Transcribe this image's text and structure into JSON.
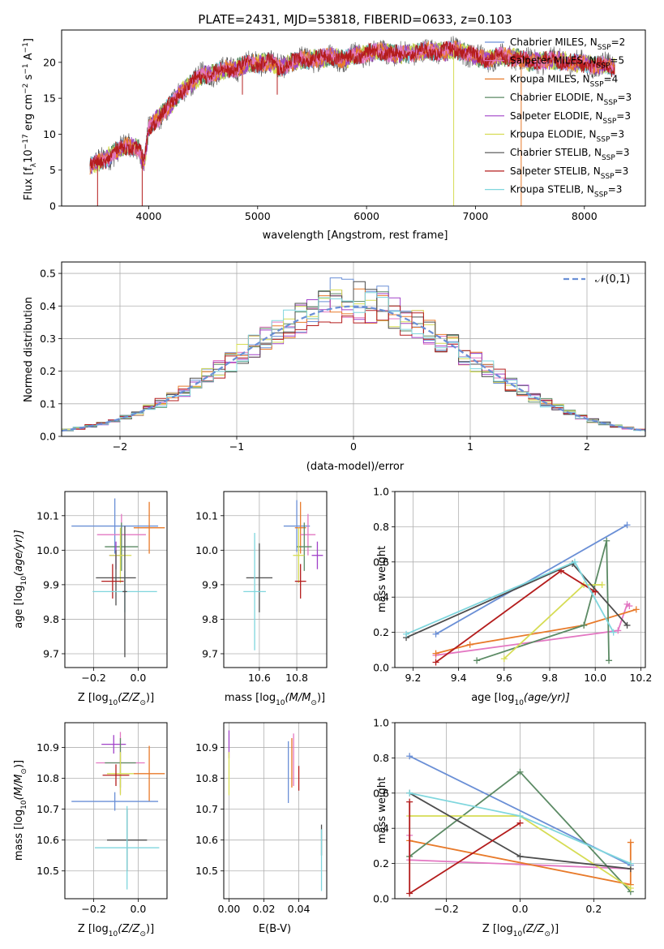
{
  "chart_data": [
    {
      "id": "spectrum",
      "type": "line",
      "title": "PLATE=2431, MJD=53818, FIBERID=0633, z=0.103",
      "xlabel": "wavelength [Angstrom, rest frame]",
      "ylabel_parts": [
        "Flux [f",
        "λ",
        "10",
        "−17",
        " erg cm",
        "−2",
        " s",
        "−1",
        " A",
        "−1",
        "]"
      ],
      "xlim": [
        3200,
        8560
      ],
      "ylim": [
        0,
        24.5
      ],
      "xticks": [
        4000,
        5000,
        6000,
        7000,
        8000
      ],
      "yticks": [
        0,
        5,
        10,
        15,
        20
      ],
      "grid": false,
      "legend_position": "top-right",
      "continuum": {
        "x": [
          3460,
          3600,
          3700,
          3800,
          3900,
          3960,
          4000,
          4100,
          4200,
          4300,
          4400,
          4500,
          4600,
          4700,
          4800,
          4900,
          5000,
          5100,
          5200,
          5300,
          5400,
          5500,
          5600,
          5700,
          5800,
          5900,
          6000,
          6100,
          6200,
          6300,
          6400,
          6500,
          6600,
          6700,
          6800,
          6900,
          7000,
          7100,
          7200,
          7300,
          7400,
          7500,
          7600,
          7700,
          7800,
          7900,
          8000,
          8100,
          8200,
          8280
        ],
        "y": [
          5.5,
          6.5,
          7.6,
          8.3,
          8.2,
          6.0,
          10.8,
          12.5,
          14.0,
          16.0,
          17.2,
          18.2,
          18.6,
          19.0,
          19.2,
          19.8,
          19.8,
          20.2,
          19.2,
          20.0,
          20.3,
          20.5,
          20.6,
          20.8,
          20.4,
          21.0,
          21.2,
          21.5,
          21.4,
          21.0,
          21.3,
          21.5,
          21.5,
          21.5,
          21.7,
          21.5,
          20.8,
          20.3,
          20.9,
          20.7,
          20.6,
          20.0,
          20.2,
          20.3,
          20.2,
          19.9,
          19.8,
          19.6,
          19.5,
          19.2
        ]
      },
      "spikes": [
        {
          "x": 3530,
          "y": 0
        },
        {
          "x": 3940,
          "y": 0
        },
        {
          "x": 6800,
          "y": 0
        },
        {
          "x": 7420,
          "y": 0
        },
        {
          "x": 6770,
          "y": 22.8
        },
        {
          "x": 4860,
          "y": 15.5
        },
        {
          "x": 5180,
          "y": 15.5
        }
      ],
      "series": [
        {
          "label": "Chabrier MILES, N",
          "sub": "SSP",
          "suffix": "=2",
          "color": "#6a8fd6"
        },
        {
          "label": "Salpeter MILES, N",
          "sub": "SSP",
          "suffix": "=5",
          "color": "#e377c2"
        },
        {
          "label": "Kroupa MILES, N",
          "sub": "SSP",
          "suffix": "=4",
          "color": "#e87a2a"
        },
        {
          "label": "Chabrier ELODIE, N",
          "sub": "SSP",
          "suffix": "=3",
          "color": "#5b8a64"
        },
        {
          "label": "Salpeter ELODIE, N",
          "sub": "SSP",
          "suffix": "=3",
          "color": "#a142c8"
        },
        {
          "label": "Kroupa ELODIE, N",
          "sub": "SSP",
          "suffix": "=3",
          "color": "#d6dc54"
        },
        {
          "label": "Chabrier STELIB, N",
          "sub": "SSP",
          "suffix": "=3",
          "color": "#4d4d4d"
        },
        {
          "label": "Salpeter STELIB, N",
          "sub": "SSP",
          "suffix": "=3",
          "color": "#b41c1c"
        },
        {
          "label": "Kroupa STELIB, N",
          "sub": "SSP",
          "suffix": "=3",
          "color": "#7fd6dd"
        }
      ]
    },
    {
      "id": "residuals",
      "type": "step-histogram",
      "xlabel": "(data-model)/error",
      "ylabel": "Normed distribution",
      "xlim": [
        -2.5,
        2.5
      ],
      "ylim": [
        0,
        0.535
      ],
      "xticks": [
        -2,
        -1,
        0,
        1,
        2
      ],
      "yticks": [
        0.0,
        0.1,
        0.2,
        0.3,
        0.4,
        0.5
      ],
      "grid": true,
      "legend": "𝒩(0,1)",
      "legend_position": "top-right",
      "bin_width": 0.1,
      "series_colors": [
        "#6a8fd6",
        "#e377c2",
        "#e87a2a",
        "#5b8a64",
        "#a142c8",
        "#d6dc54",
        "#4d4d4d",
        "#b41c1c",
        "#7fd6dd"
      ]
    },
    {
      "id": "age-Z",
      "type": "errorbar",
      "xlabel_parts": [
        "Z [log",
        "10",
        "(Z/Z",
        "⊙",
        ")]"
      ],
      "ylabel_parts": [
        "age  [log",
        "10",
        "(age/yr)]"
      ],
      "xlim": [
        -0.33,
        0.13
      ],
      "ylim": [
        9.66,
        10.17
      ],
      "xticks": [
        -0.2,
        0.0
      ],
      "yticks": [
        9.7,
        9.8,
        9.9,
        10.0,
        10.1
      ],
      "grid": true,
      "points": [
        {
          "x": -0.105,
          "y": 10.07,
          "xerr": 0.195,
          "yerr": 0.08,
          "color": "#6a8fd6"
        },
        {
          "x": 0.05,
          "y": 10.065,
          "xerr": 0.07,
          "yerr": 0.075,
          "color": "#e87a2a"
        },
        {
          "x": -0.075,
          "y": 10.045,
          "xerr": 0.11,
          "yerr": 0.06,
          "color": "#e377c2"
        },
        {
          "x": -0.075,
          "y": 10.01,
          "xerr": 0.075,
          "yerr": 0.07,
          "color": "#5b8a64"
        },
        {
          "x": -0.1,
          "y": 9.985,
          "xerr": 0.03,
          "yerr": 0.04,
          "color": "#a142c8"
        },
        {
          "x": -0.08,
          "y": 9.985,
          "xerr": 0.05,
          "yerr": 0.08,
          "color": "#d6dc54"
        },
        {
          "x": -0.1,
          "y": 9.92,
          "xerr": 0.09,
          "yerr": 0.08,
          "color": "#4d4d4d"
        },
        {
          "x": -0.115,
          "y": 9.91,
          "xerr": 0.05,
          "yerr": 0.05,
          "color": "#b41c1c"
        },
        {
          "x": -0.06,
          "y": 9.88,
          "xerr": 0.145,
          "yerr": 0.06,
          "color": "#7fd6dd"
        },
        {
          "x": -0.06,
          "y": 9.88,
          "xerr": 0.01,
          "yerr": 0.19,
          "color": "#4d4d4d"
        }
      ]
    },
    {
      "id": "age-mass",
      "type": "errorbar",
      "xlabel_parts": [
        "mass [log",
        "10",
        "(M/M",
        "⊙",
        ")]"
      ],
      "xlim": [
        10.41,
        10.96
      ],
      "ylim": [
        9.66,
        10.17
      ],
      "xticks": [
        10.6,
        10.8
      ],
      "yticks": [
        9.7,
        9.8,
        9.9,
        10.0,
        10.1
      ],
      "grid": true,
      "points": [
        {
          "x": 10.8,
          "y": 10.07,
          "xerr": 0.07,
          "yerr": 0.075,
          "color": "#6a8fd6"
        },
        {
          "x": 10.82,
          "y": 10.065,
          "xerr": 0.03,
          "yerr": 0.075,
          "color": "#e87a2a"
        },
        {
          "x": 10.86,
          "y": 10.045,
          "xerr": 0.04,
          "yerr": 0.06,
          "color": "#e377c2"
        },
        {
          "x": 10.84,
          "y": 10.01,
          "xerr": 0.04,
          "yerr": 0.07,
          "color": "#5b8a64"
        },
        {
          "x": 10.91,
          "y": 9.985,
          "xerr": 0.03,
          "yerr": 0.04,
          "color": "#a142c8"
        },
        {
          "x": 10.81,
          "y": 9.985,
          "xerr": 0.03,
          "yerr": 0.08,
          "color": "#d6dc54"
        },
        {
          "x": 10.6,
          "y": 9.92,
          "xerr": 0.07,
          "yerr": 0.1,
          "color": "#4d4d4d"
        },
        {
          "x": 10.82,
          "y": 9.91,
          "xerr": 0.03,
          "yerr": 0.05,
          "color": "#b41c1c"
        },
        {
          "x": 10.575,
          "y": 9.88,
          "xerr": 0.06,
          "yerr": 0.17,
          "color": "#7fd6dd"
        }
      ]
    },
    {
      "id": "weight-age",
      "type": "line",
      "xlabel_parts": [
        "age  [log",
        "10",
        "(age/yr)]"
      ],
      "ylabel": "mass weight",
      "xlim": [
        9.12,
        10.22
      ],
      "ylim": [
        0,
        1.0
      ],
      "xticks": [
        9.2,
        9.4,
        9.6,
        9.8,
        10.0,
        10.2
      ],
      "yticks": [
        0.0,
        0.2,
        0.4,
        0.6,
        0.8,
        1.0
      ],
      "grid": true,
      "series": [
        {
          "color": "#6a8fd6",
          "x": [
            9.3,
            10.14
          ],
          "y": [
            0.19,
            0.81
          ]
        },
        {
          "color": "#e377c2",
          "x": [
            9.3,
            10.1,
            10.14,
            10.15
          ],
          "y": [
            0.07,
            0.21,
            0.36,
            0.35
          ]
        },
        {
          "color": "#e87a2a",
          "x": [
            9.3,
            9.45,
            9.95,
            10.18
          ],
          "y": [
            0.08,
            0.13,
            0.24,
            0.33
          ]
        },
        {
          "color": "#5b8a64",
          "x": [
            9.48,
            9.95,
            10.05,
            10.06
          ],
          "y": [
            0.04,
            0.24,
            0.72,
            0.04
          ]
        },
        {
          "color": "#d6dc54",
          "x": [
            9.6,
            9.95,
            10.03
          ],
          "y": [
            0.05,
            0.47,
            0.47
          ]
        },
        {
          "color": "#4d4d4d",
          "x": [
            9.17,
            9.9,
            10.14
          ],
          "y": [
            0.17,
            0.59,
            0.24
          ]
        },
        {
          "color": "#b41c1c",
          "x": [
            9.3,
            9.85,
            10.0
          ],
          "y": [
            0.03,
            0.55,
            0.43
          ]
        },
        {
          "color": "#7fd6dd",
          "x": [
            9.17,
            9.91,
            10.08
          ],
          "y": [
            0.19,
            0.6,
            0.2
          ]
        }
      ]
    },
    {
      "id": "mass-Z",
      "type": "errorbar",
      "xlabel_parts": [
        "Z [log",
        "10",
        "(Z/Z",
        "⊙",
        ")]"
      ],
      "ylabel_parts": [
        "mass [log",
        "10",
        "(M/M",
        "⊙",
        ")]"
      ],
      "xlim": [
        -0.33,
        0.13
      ],
      "ylim": [
        10.41,
        10.98
      ],
      "xticks": [
        -0.2,
        0.0
      ],
      "yticks": [
        10.5,
        10.6,
        10.7,
        10.8,
        10.9
      ],
      "grid": true,
      "points": [
        {
          "x": -0.11,
          "y": 10.91,
          "xerr": 0.055,
          "yerr": 0.03,
          "color": "#a142c8"
        },
        {
          "x": -0.08,
          "y": 10.85,
          "xerr": 0.11,
          "yerr": 0.1,
          "color": "#e377c2"
        },
        {
          "x": -0.08,
          "y": 10.85,
          "xerr": 0.07,
          "yerr": 0.08,
          "color": "#5b8a64"
        },
        {
          "x": 0.05,
          "y": 10.815,
          "xerr": 0.07,
          "yerr": 0.09,
          "color": "#e87a2a"
        },
        {
          "x": -0.08,
          "y": 10.815,
          "xerr": 0.06,
          "yerr": 0.07,
          "color": "#d6dc54"
        },
        {
          "x": -0.1,
          "y": 10.81,
          "xerr": 0.06,
          "yerr": 0.035,
          "color": "#b41c1c"
        },
        {
          "x": -0.105,
          "y": 10.725,
          "xerr": 0.195,
          "yerr": 0.03,
          "color": "#6a8fd6"
        },
        {
          "x": -0.05,
          "y": 10.6,
          "xerr": 0.09,
          "yerr": 0.1,
          "color": "#4d4d4d"
        },
        {
          "x": -0.05,
          "y": 10.575,
          "xerr": 0.145,
          "yerr": 0.135,
          "color": "#7fd6dd"
        }
      ]
    },
    {
      "id": "mass-ebv",
      "type": "errorbar",
      "xlabel": "E(B-V)",
      "xlim": [
        -0.003,
        0.056
      ],
      "ylim": [
        10.41,
        10.98
      ],
      "xticks": [
        0.0,
        0.02,
        0.04
      ],
      "yticks": [
        10.5,
        10.6,
        10.7,
        10.8,
        10.9
      ],
      "grid": true,
      "points": [
        {
          "x": 0.0,
          "y": 10.91,
          "xerr": 0,
          "yerr": 0.045,
          "color": "#a142c8"
        },
        {
          "x": 0.0,
          "y": 10.815,
          "xerr": 0,
          "yerr": 0.07,
          "color": "#d6dc54"
        },
        {
          "x": 0.034,
          "y": 10.82,
          "xerr": 0,
          "yerr": 0.1,
          "color": "#6a8fd6"
        },
        {
          "x": 0.036,
          "y": 10.85,
          "xerr": 0,
          "yerr": 0.08,
          "color": "#e87a2a"
        },
        {
          "x": 0.037,
          "y": 10.86,
          "xerr": 0,
          "yerr": 0.085,
          "color": "#e377c2"
        },
        {
          "x": 0.04,
          "y": 10.8,
          "xerr": 0,
          "yerr": 0.04,
          "color": "#b41c1c"
        },
        {
          "x": 0.053,
          "y": 10.6,
          "xerr": 0,
          "yerr": 0.05,
          "color": "#4d4d4d"
        },
        {
          "x": 0.053,
          "y": 10.535,
          "xerr": 0,
          "yerr": 0.1,
          "color": "#7fd6dd"
        }
      ]
    },
    {
      "id": "weight-Z",
      "type": "line",
      "xlabel_parts": [
        "Z [log",
        "10",
        "(Z/Z",
        "⊙",
        ")]"
      ],
      "ylabel": "mass weight",
      "xlim": [
        -0.34,
        0.34
      ],
      "ylim": [
        0,
        1.0
      ],
      "xticks": [
        -0.2,
        0.0,
        0.2
      ],
      "yticks": [
        0.0,
        0.2,
        0.4,
        0.6,
        0.8,
        1.0
      ],
      "grid": true,
      "series": [
        {
          "color": "#6a8fd6",
          "x": [
            -0.3,
            0.3
          ],
          "y": [
            0.81,
            0.19
          ]
        },
        {
          "color": "#e377c2",
          "x": [
            -0.3,
            -0.3,
            0.3
          ],
          "y": [
            0.36,
            0.22,
            0.17
          ]
        },
        {
          "color": "#e87a2a",
          "x": [
            -0.3,
            0.3,
            0.3
          ],
          "y": [
            0.33,
            0.08,
            0.32
          ]
        },
        {
          "color": "#5b8a64",
          "x": [
            -0.3,
            0.0,
            0.3
          ],
          "y": [
            0.24,
            0.72,
            0.04
          ]
        },
        {
          "color": "#d6dc54",
          "x": [
            -0.3,
            0.0,
            0.3
          ],
          "y": [
            0.47,
            0.47,
            0.06
          ]
        },
        {
          "color": "#4d4d4d",
          "x": [
            -0.3,
            0.0,
            0.3
          ],
          "y": [
            0.6,
            0.24,
            0.17
          ]
        },
        {
          "color": "#b41c1c",
          "x": [
            -0.3,
            -0.3,
            0.0
          ],
          "y": [
            0.55,
            0.03,
            0.43
          ]
        },
        {
          "color": "#7fd6dd",
          "x": [
            -0.3,
            0.0,
            0.3
          ],
          "y": [
            0.6,
            0.47,
            0.2
          ]
        }
      ]
    }
  ]
}
